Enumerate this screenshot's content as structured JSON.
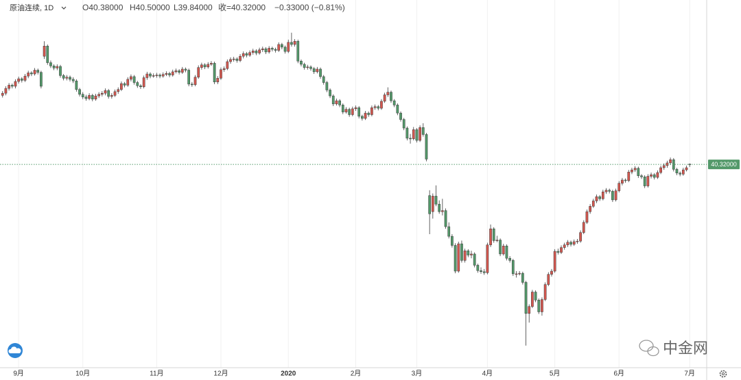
{
  "chart_data": {
    "type": "candlestick",
    "title": "原油连续, 1D",
    "header": [
      "O40.38000",
      "H40.50000",
      "L39.84000",
      "收=40.32000",
      "−0.33000 (−0.81%)"
    ],
    "last_label": "40.32000",
    "watermark": "中金网",
    "up_color": "#d4574f",
    "down_color": "#53996a",
    "ylim": [
      2,
      71
    ],
    "xlim": [
      -0.8,
      219.3
    ],
    "xticks": [
      {
        "value": 5,
        "label": "9月"
      },
      {
        "value": 25,
        "label": "10月"
      },
      {
        "value": 48,
        "label": "11月"
      },
      {
        "value": 68,
        "label": "12月"
      },
      {
        "value": 89,
        "label": "2020"
      },
      {
        "value": 110,
        "label": "2月"
      },
      {
        "value": 129,
        "label": "3月"
      },
      {
        "value": 151,
        "label": "4月"
      },
      {
        "value": 172,
        "label": "5月"
      },
      {
        "value": 192,
        "label": "6月"
      },
      {
        "value": 214,
        "label": "7月"
      }
    ],
    "grid": true,
    "ohlc": [
      [
        53.2,
        54.0,
        52.8,
        53.6
      ],
      [
        53.6,
        54.9,
        53.2,
        54.5
      ],
      [
        54.5,
        55.5,
        54.1,
        55.1
      ],
      [
        55.1,
        55.4,
        54.5,
        54.9
      ],
      [
        54.9,
        56.2,
        54.5,
        55.8
      ],
      [
        55.8,
        56.7,
        55.4,
        56.3
      ],
      [
        56.3,
        56.6,
        55.6,
        56.0
      ],
      [
        56.0,
        57.2,
        55.7,
        56.8
      ],
      [
        56.8,
        57.8,
        56.4,
        57.4
      ],
      [
        57.4,
        57.7,
        56.8,
        57.2
      ],
      [
        57.2,
        58.3,
        56.9,
        57.9
      ],
      [
        57.9,
        58.2,
        57.1,
        57.5
      ],
      [
        57.5,
        57.8,
        54.5,
        54.9
      ],
      [
        60.5,
        63.3,
        60.0,
        62.4
      ],
      [
        62.4,
        62.7,
        58.9,
        59.3
      ],
      [
        59.3,
        59.7,
        58.3,
        58.7
      ],
      [
        58.7,
        59.0,
        57.9,
        58.3
      ],
      [
        58.3,
        59.0,
        57.9,
        58.6
      ],
      [
        58.6,
        58.9,
        56.5,
        56.9
      ],
      [
        56.9,
        57.2,
        56.0,
        56.4
      ],
      [
        56.4,
        57.0,
        56.0,
        56.6
      ],
      [
        56.6,
        56.9,
        55.8,
        56.2
      ],
      [
        56.2,
        56.6,
        55.5,
        55.9
      ],
      [
        55.9,
        56.2,
        53.9,
        54.3
      ],
      [
        54.3,
        54.6,
        53.0,
        53.4
      ],
      [
        53.4,
        53.8,
        52.5,
        52.9
      ],
      [
        52.9,
        53.3,
        52.2,
        52.6
      ],
      [
        52.6,
        53.6,
        52.3,
        53.2
      ],
      [
        53.2,
        53.5,
        52.1,
        52.5
      ],
      [
        52.5,
        53.5,
        52.2,
        53.1
      ],
      [
        53.1,
        53.8,
        52.7,
        53.4
      ],
      [
        53.4,
        54.0,
        53.0,
        53.6
      ],
      [
        53.6,
        54.5,
        53.2,
        54.1
      ],
      [
        54.1,
        54.4,
        52.6,
        53.0
      ],
      [
        53.0,
        53.6,
        52.6,
        53.2
      ],
      [
        53.2,
        54.3,
        52.9,
        53.9
      ],
      [
        53.9,
        54.7,
        53.5,
        54.3
      ],
      [
        54.3,
        55.8,
        54.0,
        55.4
      ],
      [
        55.4,
        55.7,
        54.7,
        55.1
      ],
      [
        55.1,
        56.6,
        54.8,
        56.2
      ],
      [
        56.2,
        57.1,
        55.8,
        56.7
      ],
      [
        56.7,
        57.0,
        55.2,
        55.6
      ],
      [
        55.6,
        55.9,
        54.6,
        55.0
      ],
      [
        55.0,
        55.3,
        54.4,
        54.8
      ],
      [
        54.8,
        56.9,
        54.5,
        56.5
      ],
      [
        56.5,
        57.6,
        56.1,
        57.2
      ],
      [
        57.2,
        57.5,
        56.4,
        56.8
      ],
      [
        56.8,
        57.3,
        56.5,
        56.9
      ],
      [
        56.9,
        57.4,
        56.5,
        57.0
      ],
      [
        57.0,
        57.3,
        56.4,
        56.8
      ],
      [
        56.8,
        57.5,
        56.5,
        57.1
      ],
      [
        57.1,
        57.7,
        56.8,
        57.3
      ],
      [
        57.3,
        57.6,
        56.6,
        57.0
      ],
      [
        57.0,
        58.0,
        56.7,
        57.6
      ],
      [
        57.6,
        58.2,
        57.3,
        57.8
      ],
      [
        57.8,
        58.1,
        57.1,
        57.5
      ],
      [
        57.5,
        58.5,
        57.2,
        58.1
      ],
      [
        58.1,
        58.4,
        57.5,
        57.9
      ],
      [
        57.9,
        58.2,
        54.9,
        55.3
      ],
      [
        55.3,
        55.7,
        54.8,
        55.2
      ],
      [
        55.2,
        57.0,
        54.9,
        56.6
      ],
      [
        56.6,
        58.8,
        56.3,
        58.4
      ],
      [
        58.4,
        59.3,
        58.0,
        58.9
      ],
      [
        58.9,
        59.2,
        58.1,
        58.5
      ],
      [
        58.5,
        59.4,
        58.2,
        59.0
      ],
      [
        59.0,
        59.6,
        58.7,
        59.2
      ],
      [
        59.2,
        59.5,
        55.3,
        55.7
      ],
      [
        55.7,
        56.8,
        55.3,
        56.4
      ],
      [
        56.4,
        58.4,
        56.1,
        58.0
      ],
      [
        58.0,
        58.6,
        57.6,
        58.2
      ],
      [
        58.2,
        59.9,
        57.9,
        59.5
      ],
      [
        59.5,
        60.3,
        59.1,
        59.9
      ],
      [
        59.9,
        60.4,
        59.5,
        60.0
      ],
      [
        60.0,
        60.3,
        59.3,
        59.7
      ],
      [
        59.7,
        60.9,
        59.4,
        60.5
      ],
      [
        60.5,
        61.4,
        60.1,
        61.0
      ],
      [
        61.0,
        61.3,
        60.3,
        60.7
      ],
      [
        60.7,
        61.6,
        60.4,
        61.2
      ],
      [
        61.2,
        61.9,
        60.8,
        61.5
      ],
      [
        61.5,
        61.8,
        60.7,
        61.1
      ],
      [
        61.1,
        62.1,
        60.8,
        61.7
      ],
      [
        61.7,
        62.3,
        61.3,
        61.9
      ],
      [
        61.9,
        62.2,
        60.9,
        61.3
      ],
      [
        61.3,
        62.4,
        61.0,
        62.0
      ],
      [
        62.0,
        62.3,
        61.4,
        61.8
      ],
      [
        61.8,
        62.1,
        61.2,
        61.6
      ],
      [
        61.6,
        63.1,
        61.3,
        62.7
      ],
      [
        62.7,
        63.0,
        61.8,
        62.2
      ],
      [
        62.2,
        62.5,
        61.0,
        61.4
      ],
      [
        61.4,
        63.6,
        61.1,
        63.1
      ],
      [
        63.1,
        64.9,
        62.3,
        62.7
      ],
      [
        62.7,
        63.7,
        62.3,
        63.3
      ],
      [
        63.3,
        63.6,
        59.2,
        59.6
      ],
      [
        59.6,
        59.9,
        58.6,
        59.0
      ],
      [
        59.0,
        59.3,
        58.0,
        58.4
      ],
      [
        58.4,
        58.9,
        58.0,
        58.5
      ],
      [
        58.5,
        58.8,
        57.8,
        58.2
      ],
      [
        58.2,
        58.5,
        57.2,
        57.6
      ],
      [
        57.6,
        58.5,
        57.3,
        58.1
      ],
      [
        58.1,
        58.4,
        56.3,
        56.7
      ],
      [
        56.7,
        57.0,
        55.2,
        55.6
      ],
      [
        55.6,
        55.9,
        53.8,
        54.2
      ],
      [
        54.2,
        54.5,
        52.7,
        53.1
      ],
      [
        53.1,
        53.4,
        51.2,
        51.6
      ],
      [
        51.6,
        52.6,
        51.3,
        52.2
      ],
      [
        52.2,
        52.5,
        51.0,
        51.4
      ],
      [
        51.4,
        51.7,
        49.7,
        50.1
      ],
      [
        50.1,
        51.0,
        49.8,
        50.6
      ],
      [
        50.6,
        50.9,
        49.2,
        49.6
      ],
      [
        49.6,
        51.1,
        49.3,
        50.7
      ],
      [
        50.7,
        51.3,
        50.3,
        50.9
      ],
      [
        50.9,
        51.2,
        48.9,
        49.3
      ],
      [
        49.3,
        49.6,
        48.5,
        48.9
      ],
      [
        48.9,
        50.3,
        48.6,
        49.9
      ],
      [
        49.9,
        50.2,
        49.2,
        49.6
      ],
      [
        49.6,
        51.3,
        49.3,
        50.9
      ],
      [
        50.9,
        51.5,
        50.5,
        51.1
      ],
      [
        51.1,
        51.4,
        50.4,
        50.8
      ],
      [
        50.8,
        52.5,
        50.5,
        52.1
      ],
      [
        52.1,
        53.7,
        51.8,
        53.3
      ],
      [
        53.3,
        54.7,
        52.9,
        53.8
      ],
      [
        53.8,
        54.1,
        51.8,
        52.2
      ],
      [
        52.2,
        52.5,
        51.0,
        51.4
      ],
      [
        51.4,
        51.7,
        49.5,
        49.9
      ],
      [
        49.9,
        50.2,
        48.3,
        48.7
      ],
      [
        48.7,
        49.0,
        46.7,
        47.1
      ],
      [
        47.1,
        47.4,
        44.8,
        45.2
      ],
      [
        45.2,
        46.0,
        44.2,
        45.1
      ],
      [
        45.1,
        47.3,
        44.8,
        46.8
      ],
      [
        46.8,
        47.1,
        44.4,
        44.8
      ],
      [
        44.8,
        47.6,
        44.5,
        47.2
      ],
      [
        47.2,
        48.0,
        45.5,
        45.9
      ],
      [
        45.9,
        46.2,
        40.9,
        41.3
      ],
      [
        34.5,
        35.5,
        27.3,
        31.1
      ],
      [
        31.5,
        34.9,
        30.2,
        34.4
      ],
      [
        34.4,
        36.4,
        32.5,
        32.9
      ],
      [
        32.9,
        33.6,
        31.1,
        31.5
      ],
      [
        31.5,
        33.9,
        30.8,
        31.7
      ],
      [
        31.7,
        32.1,
        28.3,
        28.7
      ],
      [
        28.7,
        29.5,
        26.5,
        26.9
      ],
      [
        26.9,
        27.3,
        24.8,
        25.2
      ],
      [
        25.2,
        25.6,
        20.0,
        20.4
      ],
      [
        20.4,
        25.9,
        20.1,
        25.5
      ],
      [
        25.5,
        26.1,
        22.0,
        22.4
      ],
      [
        22.4,
        24.6,
        22.0,
        24.2
      ],
      [
        24.2,
        24.5,
        23.0,
        23.4
      ],
      [
        23.4,
        24.2,
        22.8,
        23.6
      ],
      [
        23.6,
        23.9,
        21.1,
        21.5
      ],
      [
        21.5,
        21.8,
        20.1,
        20.5
      ],
      [
        20.5,
        21.1,
        19.9,
        20.3
      ],
      [
        20.3,
        20.8,
        19.7,
        20.1
      ],
      [
        20.1,
        25.7,
        19.8,
        25.3
      ],
      [
        25.3,
        29.1,
        24.9,
        28.3
      ],
      [
        28.3,
        28.6,
        25.7,
        26.1
      ],
      [
        26.1,
        27.0,
        25.8,
        26.2
      ],
      [
        26.2,
        26.5,
        23.2,
        23.6
      ],
      [
        23.6,
        25.5,
        23.3,
        25.1
      ],
      [
        25.1,
        25.4,
        22.4,
        22.8
      ],
      [
        22.8,
        23.2,
        22.0,
        22.4
      ],
      [
        22.4,
        22.7,
        19.5,
        19.9
      ],
      [
        19.9,
        20.4,
        19.2,
        19.9
      ],
      [
        19.9,
        20.4,
        19.6,
        20.0
      ],
      [
        20.0,
        20.3,
        17.9,
        18.3
      ],
      [
        18.3,
        18.6,
        6.5,
        12.5
      ],
      [
        12.5,
        14.2,
        10.8,
        13.8
      ],
      [
        13.8,
        16.9,
        13.5,
        16.5
      ],
      [
        16.5,
        16.8,
        14.6,
        15.0
      ],
      [
        15.0,
        15.3,
        12.4,
        12.8
      ],
      [
        12.8,
        15.5,
        12.1,
        15.1
      ],
      [
        15.1,
        18.3,
        14.8,
        17.9
      ],
      [
        17.9,
        20.2,
        17.6,
        19.8
      ],
      [
        19.8,
        20.8,
        19.4,
        20.4
      ],
      [
        20.4,
        24.5,
        20.1,
        24.1
      ],
      [
        24.1,
        24.6,
        23.5,
        23.9
      ],
      [
        23.9,
        25.2,
        23.6,
        24.8
      ],
      [
        24.8,
        25.7,
        24.4,
        25.3
      ],
      [
        25.3,
        26.2,
        24.9,
        25.8
      ],
      [
        25.8,
        26.1,
        25.0,
        25.4
      ],
      [
        25.4,
        26.3,
        25.1,
        25.9
      ],
      [
        25.9,
        26.4,
        25.5,
        26.0
      ],
      [
        26.0,
        28.0,
        25.7,
        27.6
      ],
      [
        27.6,
        29.9,
        27.3,
        29.5
      ],
      [
        29.5,
        31.9,
        29.2,
        31.5
      ],
      [
        31.5,
        32.9,
        31.1,
        32.5
      ],
      [
        32.5,
        33.9,
        32.2,
        33.5
      ],
      [
        33.5,
        34.7,
        33.1,
        34.3
      ],
      [
        34.3,
        34.6,
        33.5,
        33.9
      ],
      [
        33.9,
        35.6,
        33.6,
        35.2
      ],
      [
        35.2,
        35.9,
        34.8,
        35.5
      ],
      [
        35.5,
        35.8,
        34.9,
        35.3
      ],
      [
        35.3,
        35.6,
        33.3,
        33.7
      ],
      [
        33.7,
        35.8,
        33.4,
        35.4
      ],
      [
        35.4,
        37.2,
        35.1,
        36.8
      ],
      [
        36.8,
        37.8,
        36.4,
        37.4
      ],
      [
        37.4,
        37.7,
        36.9,
        37.3
      ],
      [
        37.3,
        39.3,
        37.0,
        38.9
      ],
      [
        38.9,
        39.7,
        38.5,
        39.3
      ],
      [
        39.3,
        40.0,
        38.9,
        39.6
      ],
      [
        39.6,
        39.9,
        37.8,
        38.2
      ],
      [
        38.2,
        38.5,
        37.6,
        38.0
      ],
      [
        38.0,
        38.3,
        35.9,
        36.3
      ],
      [
        36.3,
        38.5,
        36.0,
        38.1
      ],
      [
        38.1,
        38.8,
        37.7,
        38.4
      ],
      [
        38.4,
        38.7,
        37.5,
        37.9
      ],
      [
        37.9,
        39.2,
        37.6,
        38.8
      ],
      [
        38.8,
        40.1,
        38.5,
        39.7
      ],
      [
        39.7,
        40.5,
        39.3,
        40.1
      ],
      [
        40.1,
        41.0,
        39.7,
        40.6
      ],
      [
        40.6,
        41.6,
        40.2,
        41.2
      ],
      [
        41.2,
        41.5,
        39.0,
        39.4
      ],
      [
        39.4,
        39.7,
        38.3,
        38.7
      ],
      [
        38.7,
        39.0,
        38.1,
        38.5
      ],
      [
        38.5,
        39.7,
        38.2,
        39.3
      ],
      [
        39.3,
        40.1,
        39.0,
        39.7
      ],
      [
        40.38,
        40.5,
        39.84,
        40.32
      ]
    ]
  }
}
